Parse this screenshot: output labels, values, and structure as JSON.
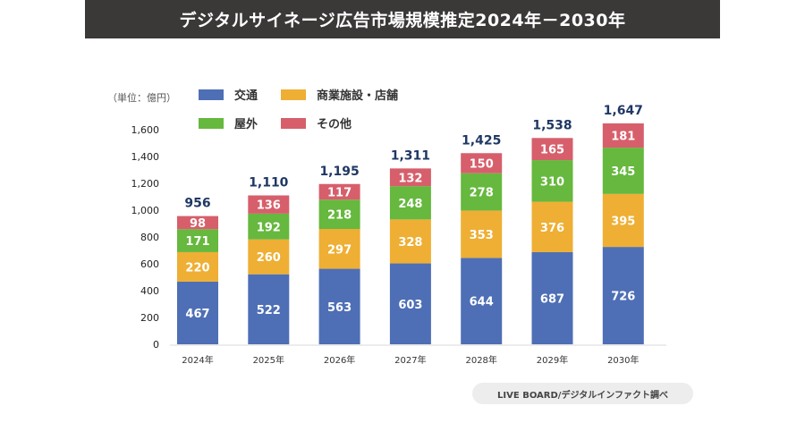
{
  "title": "デジタルサイネージ広告市場規模推定2024年－2030年",
  "unit_label": "（単位：億円）",
  "source": "LIVE BOARD/デジタルインファクト調べ",
  "chart_data": {
    "type": "bar",
    "stacked": true,
    "title": "デジタルサイネージ広告市場規模推定2024年－2030年",
    "xlabel": "",
    "ylabel": "（単位：億円）",
    "ylim": [
      0,
      1600
    ],
    "yticks": [
      0,
      200,
      400,
      600,
      800,
      1000,
      1200,
      1400,
      1600
    ],
    "ytick_labels": [
      "0",
      "200",
      "400",
      "600",
      "800",
      "1,000",
      "1,200",
      "1,400",
      "1,600"
    ],
    "grid": false,
    "legend_position": "top-left",
    "categories": [
      "2024年",
      "2025年",
      "2026年",
      "2027年",
      "2028年",
      "2029年",
      "2030年"
    ],
    "series": [
      {
        "name": "交通",
        "color": "#4e6fb5",
        "values": [
          467,
          522,
          563,
          603,
          644,
          687,
          726
        ]
      },
      {
        "name": "商業施設・店舗",
        "color": "#eeaf34",
        "values": [
          220,
          260,
          297,
          328,
          353,
          376,
          395
        ]
      },
      {
        "name": "屋外",
        "color": "#66b83e",
        "values": [
          171,
          192,
          218,
          248,
          278,
          310,
          345
        ]
      },
      {
        "name": "その他",
        "color": "#d65f6b",
        "values": [
          98,
          136,
          117,
          132,
          150,
          165,
          181
        ]
      }
    ],
    "totals": [
      956,
      1110,
      1195,
      1311,
      1425,
      1538,
      1647
    ],
    "total_labels": [
      "956",
      "1,110",
      "1,195",
      "1,311",
      "1,425",
      "1,538",
      "1,647"
    ],
    "total_label_color": "#1f3864"
  }
}
